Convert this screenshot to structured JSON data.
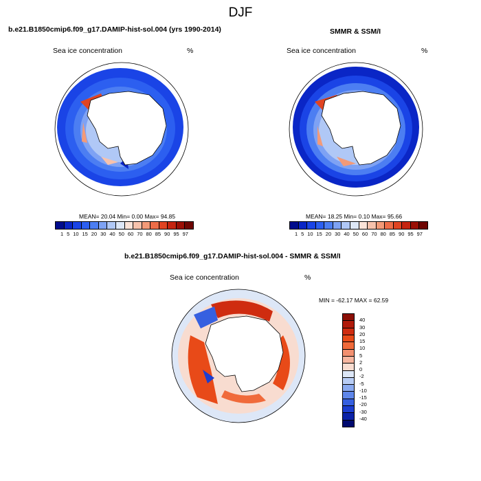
{
  "season": "DJF",
  "panel1": {
    "header": "b.e21.B1850cmip6.f09_g17.DAMIP-hist-sol.004 (yrs 1990-2014)",
    "variable": "Sea ice concentration",
    "units": "%",
    "stats": "MEAN=  20.04  Min=   0.00  Max=  94.85"
  },
  "panel2": {
    "header": "SMMR & SSM/I",
    "variable": "Sea ice concentration",
    "units": "%",
    "stats": "MEAN=  18.25  Min=   0.10  Max=  95.66"
  },
  "panel3": {
    "header": "b.e21.B1850cmip6.f09_g17.DAMIP-hist-sol.004 - SMMR & SSM/I",
    "variable": "Sea ice concentration",
    "units": "%",
    "minmax": "MIN = -62.17 MAX =  62.59"
  },
  "colorbar_conc": {
    "labels": [
      "1",
      "5",
      "10",
      "15",
      "20",
      "30",
      "40",
      "50",
      "60",
      "70",
      "80",
      "85",
      "90",
      "95",
      "97"
    ],
    "colors": [
      "#000c8c",
      "#0a26c6",
      "#1a44e6",
      "#2c5ff0",
      "#4c7ef2",
      "#7ea2f4",
      "#b0c8f6",
      "#dde7f7",
      "#fbe3d8",
      "#f7c2ac",
      "#f39a78",
      "#ee6d48",
      "#e04422",
      "#c52410",
      "#9a0f05",
      "#6e0502"
    ]
  },
  "colorbar_diff": {
    "labels": [
      "40",
      "30",
      "20",
      "15",
      "10",
      "5",
      "2",
      "0",
      "-2",
      "-5",
      "-10",
      "-15",
      "-20",
      "-30",
      "-40"
    ],
    "colors": [
      "#8b0f06",
      "#b01a0a",
      "#cf2c10",
      "#e84a18",
      "#f06a3a",
      "#f29070",
      "#f6b6a0",
      "#f8dcd0",
      "#dde7f7",
      "#b8cdf5",
      "#8aaaf0",
      "#5e86ea",
      "#3660e0",
      "#1c3ed0",
      "#0b22a8",
      "#000a70"
    ]
  }
}
